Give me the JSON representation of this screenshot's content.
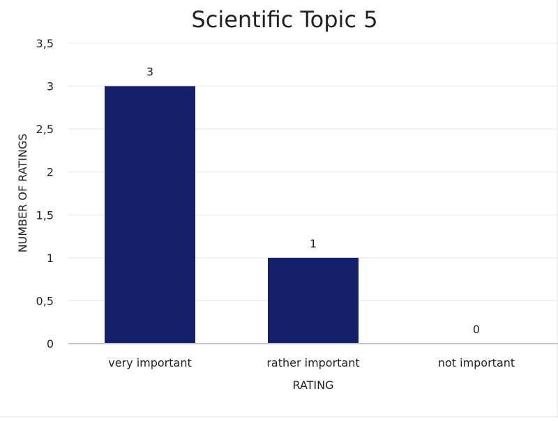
{
  "chart_data": {
    "type": "bar",
    "title": "Scientific Topic 5",
    "xlabel": "RATING",
    "ylabel": "NUMBER OF RATINGS",
    "categories": [
      "very important",
      "rather important",
      "not important"
    ],
    "values": [
      3,
      1,
      0
    ],
    "data_labels": [
      "3",
      "1",
      "0"
    ],
    "ylim": [
      0,
      3.5
    ],
    "yticks": [
      0,
      0.5,
      1,
      1.5,
      2,
      2.5,
      3,
      3.5
    ],
    "ytick_labels": [
      "0",
      "0,5",
      "1",
      "1,5",
      "2",
      "2,5",
      "3",
      "3,5"
    ],
    "grid": true,
    "legend": "none",
    "bar_color": "#14206c",
    "grid_color": "#e8e8e8",
    "axis_color": "#bfc5cc",
    "text_color": "#222222"
  }
}
